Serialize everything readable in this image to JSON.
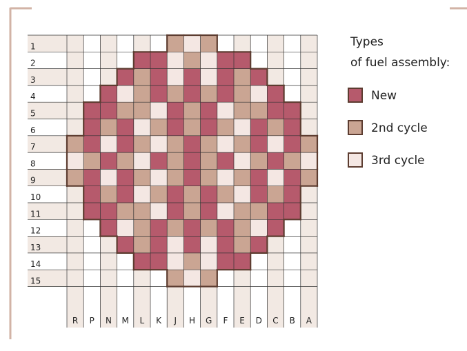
{
  "diagram": {
    "columns": [
      "R",
      "P",
      "N",
      "M",
      "L",
      "K",
      "J",
      "H",
      "G",
      "F",
      "E",
      "D",
      "C",
      "B",
      "A"
    ],
    "rows": [
      "1",
      "2",
      "3",
      "4",
      "5",
      "6",
      "7",
      "8",
      "9",
      "10",
      "11",
      "12",
      "13",
      "14",
      "15"
    ],
    "core": [
      "......232......",
      "....NN323NN....",
      "...N2N3N3N2N...",
      "..N32N2N2N23N..",
      ".NN223N2N322NN.",
      ".N2N32N2N23N2N.",
      "2N3N232N232N3N2",
      "32N23N2N2N32N23",
      "2N3N232N232N3N2",
      ".N2N32N2N23N2N.",
      ".NN223N2N322NN.",
      "..N32N2N2N23N..",
      "...N2N3N3N2N...",
      "....NN323NN....",
      "......232......"
    ],
    "legend": {
      "title_line1": "Types",
      "title_line2": "of fuel assembly:",
      "items": [
        {
          "code": "N",
          "label": "New",
          "color": "#b65a6c"
        },
        {
          "code": "2",
          "label": "2nd cycle",
          "color": "#caa593"
        },
        {
          "code": "3",
          "label": "3rd cycle",
          "color": "#f4e7e3"
        }
      ]
    }
  }
}
